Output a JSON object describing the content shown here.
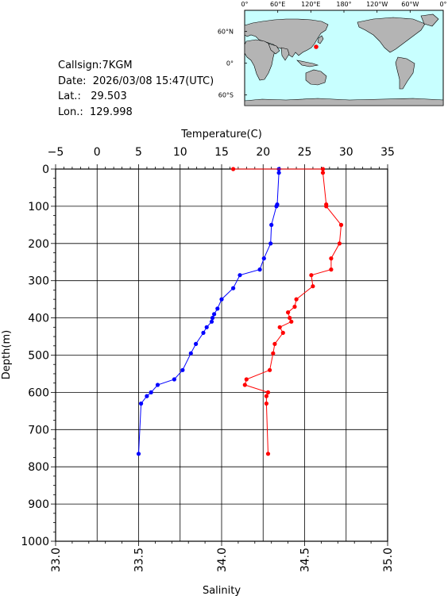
{
  "header": {
    "callsign": "Callsign:7KGM",
    "date": "Date:  2026/03/08 15:47(UTC)",
    "lat_label": "Lat.:",
    "lat_value": "29.503",
    "lon_label": "Lon.:",
    "lon_value": "129.998"
  },
  "map": {
    "lon_ticks": [
      "0°",
      "60°E",
      "120°E",
      "180°",
      "120°W",
      "60°W",
      "0°"
    ],
    "lat_ticks": [
      "60°N",
      "0°",
      "60°S"
    ],
    "station_marker_color": "#ff0000",
    "ocean_color": "#c8ffff",
    "land_color": "#b4b4b4"
  },
  "chart_data": {
    "type": "line",
    "title": "",
    "ylabel": "Depth(m)",
    "ylim": [
      1000,
      0
    ],
    "yticks": [
      0,
      100,
      200,
      300,
      400,
      500,
      600,
      700,
      800,
      900,
      1000
    ],
    "top_axis": {
      "label": "Temperature(C)",
      "range": [
        -5,
        35
      ],
      "ticks": [
        "−5",
        "0",
        "5",
        "10",
        "15",
        "20",
        "25",
        "30",
        "35"
      ]
    },
    "bottom_axis": {
      "label": "Salinity",
      "range": [
        33.0,
        35.0
      ],
      "ticks": [
        "33.0",
        "33.5",
        "34.0",
        "34.5",
        "35.0"
      ]
    },
    "series": [
      {
        "axis": "temperature",
        "color": "#0000ff",
        "points": [
          [
            21.9,
            0
          ],
          [
            21.9,
            10
          ],
          [
            21.7,
            95
          ],
          [
            21.6,
            100
          ],
          [
            21.0,
            150
          ],
          [
            20.9,
            200
          ],
          [
            20.1,
            240
          ],
          [
            19.6,
            270
          ],
          [
            17.2,
            285
          ],
          [
            16.4,
            320
          ],
          [
            15.0,
            350
          ],
          [
            14.5,
            375
          ],
          [
            14.1,
            390
          ],
          [
            13.9,
            400
          ],
          [
            13.8,
            410
          ],
          [
            13.2,
            425
          ],
          [
            12.8,
            440
          ],
          [
            11.9,
            470
          ],
          [
            11.3,
            495
          ],
          [
            10.3,
            540
          ],
          [
            9.3,
            565
          ],
          [
            7.3,
            580
          ],
          [
            6.5,
            600
          ],
          [
            6.0,
            610
          ],
          [
            5.3,
            630
          ],
          [
            5.0,
            765
          ]
        ]
      },
      {
        "axis": "salinity",
        "color": "#ff0000",
        "points": [
          [
            34.07,
            0
          ],
          [
            34.61,
            0
          ],
          [
            34.61,
            10
          ],
          [
            34.63,
            95
          ],
          [
            34.63,
            100
          ],
          [
            34.72,
            150
          ],
          [
            34.71,
            200
          ],
          [
            34.66,
            240
          ],
          [
            34.66,
            270
          ],
          [
            34.54,
            285
          ],
          [
            34.55,
            315
          ],
          [
            34.45,
            350
          ],
          [
            34.44,
            370
          ],
          [
            34.4,
            385
          ],
          [
            34.41,
            400
          ],
          [
            34.42,
            410
          ],
          [
            34.35,
            425
          ],
          [
            34.37,
            440
          ],
          [
            34.32,
            470
          ],
          [
            34.31,
            495
          ],
          [
            34.29,
            540
          ],
          [
            34.15,
            565
          ],
          [
            34.14,
            580
          ],
          [
            34.28,
            600
          ],
          [
            34.27,
            610
          ],
          [
            34.27,
            630
          ],
          [
            34.28,
            765
          ]
        ]
      }
    ]
  }
}
